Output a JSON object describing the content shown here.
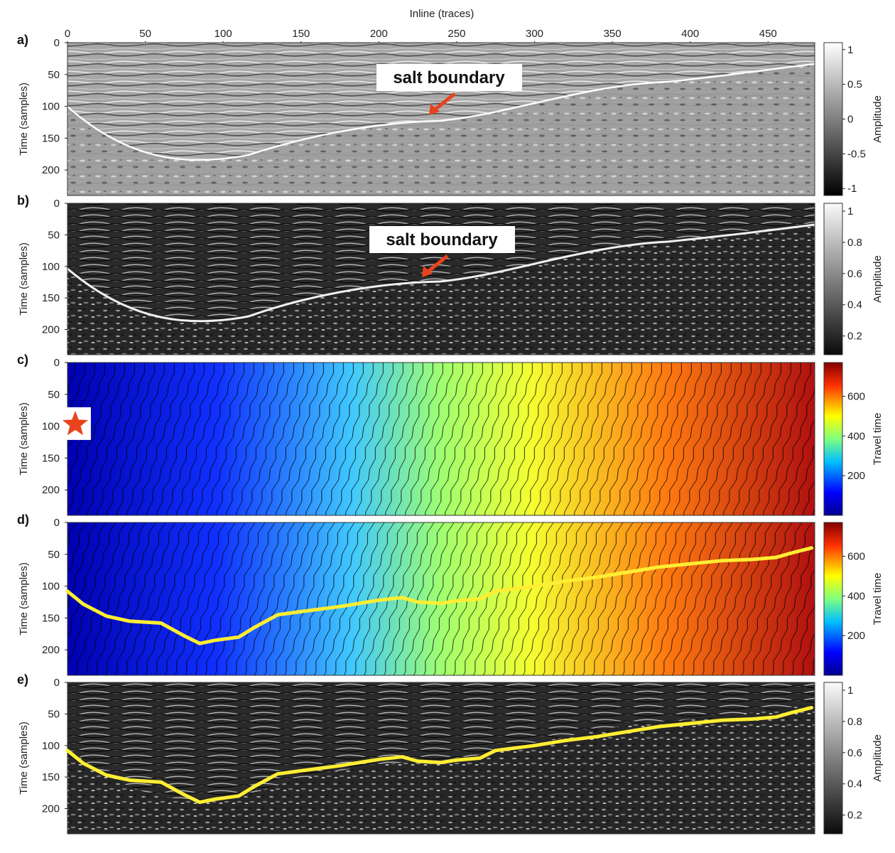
{
  "figure": {
    "x_axis_title": "Inline (traces)",
    "x_ticks": [
      "0",
      "50",
      "100",
      "150",
      "200",
      "250",
      "300",
      "350",
      "400",
      "450"
    ],
    "y_ticks": [
      "0",
      "50",
      "100",
      "150",
      "200"
    ],
    "colors": {
      "salt_arrow": "#e8431c",
      "boundary_line": "#ffee33",
      "star": "#e8431c"
    }
  },
  "panels": [
    {
      "letter": "a)",
      "ylabel": "Time (samples)",
      "annotation": "salt boundary",
      "colorbar": {
        "label": "Amplitude",
        "ticks": [
          "1",
          "0.5",
          "0",
          "-0.5",
          "-1"
        ],
        "colormap": "gray"
      }
    },
    {
      "letter": "b)",
      "ylabel": "Time (samples)",
      "annotation": "salt boundary",
      "colorbar": {
        "label": "Amplitude",
        "ticks": [
          "1",
          "0.8",
          "0.6",
          "0.4",
          "0.2"
        ],
        "colormap": "gray"
      }
    },
    {
      "letter": "c)",
      "ylabel": "Time (samples)",
      "annotation": "",
      "colorbar": {
        "label": "Travel time",
        "ticks": [
          "600",
          "400",
          "200"
        ],
        "colormap": "jet"
      }
    },
    {
      "letter": "d)",
      "ylabel": "Time (samples)",
      "annotation": "",
      "colorbar": {
        "label": "Travel time",
        "ticks": [
          "600",
          "400",
          "200"
        ],
        "colormap": "jet"
      }
    },
    {
      "letter": "e)",
      "ylabel": "Time (samples)",
      "annotation": "",
      "colorbar": {
        "label": "Amplitude",
        "ticks": [
          "1",
          "0.8",
          "0.6",
          "0.4",
          "0.2"
        ],
        "colormap": "gray"
      }
    }
  ],
  "salt_boundary_picks": {
    "inline": [
      0,
      10,
      25,
      40,
      60,
      75,
      85,
      95,
      110,
      120,
      135,
      150,
      175,
      200,
      215,
      225,
      240,
      250,
      265,
      275,
      300,
      320,
      340,
      360,
      380,
      400,
      420,
      440,
      455,
      465,
      478
    ],
    "time": [
      108,
      128,
      147,
      155,
      158,
      178,
      190,
      185,
      180,
      165,
      145,
      140,
      132,
      122,
      118,
      125,
      127,
      123,
      120,
      108,
      100,
      92,
      86,
      78,
      70,
      65,
      60,
      58,
      55,
      48,
      40
    ]
  },
  "source_point": {
    "inline": 5,
    "time": 97
  }
}
